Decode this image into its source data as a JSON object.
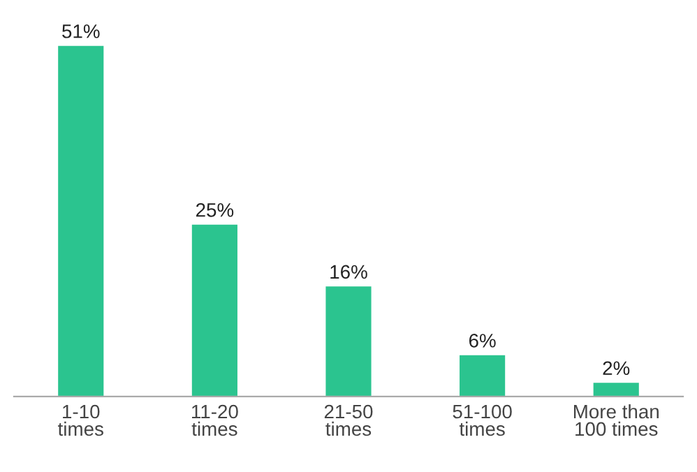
{
  "chart_data": {
    "type": "bar",
    "categories": [
      "1-10\ntimes",
      "11-20\ntimes",
      "21-50\ntimes",
      "51-100\ntimes",
      "More than\n100 times"
    ],
    "values": [
      51,
      25,
      16,
      6,
      2
    ],
    "value_labels": [
      "51%",
      "25%",
      "16%",
      "6%",
      "2%"
    ],
    "color": "#2bc48f",
    "grid": false
  }
}
